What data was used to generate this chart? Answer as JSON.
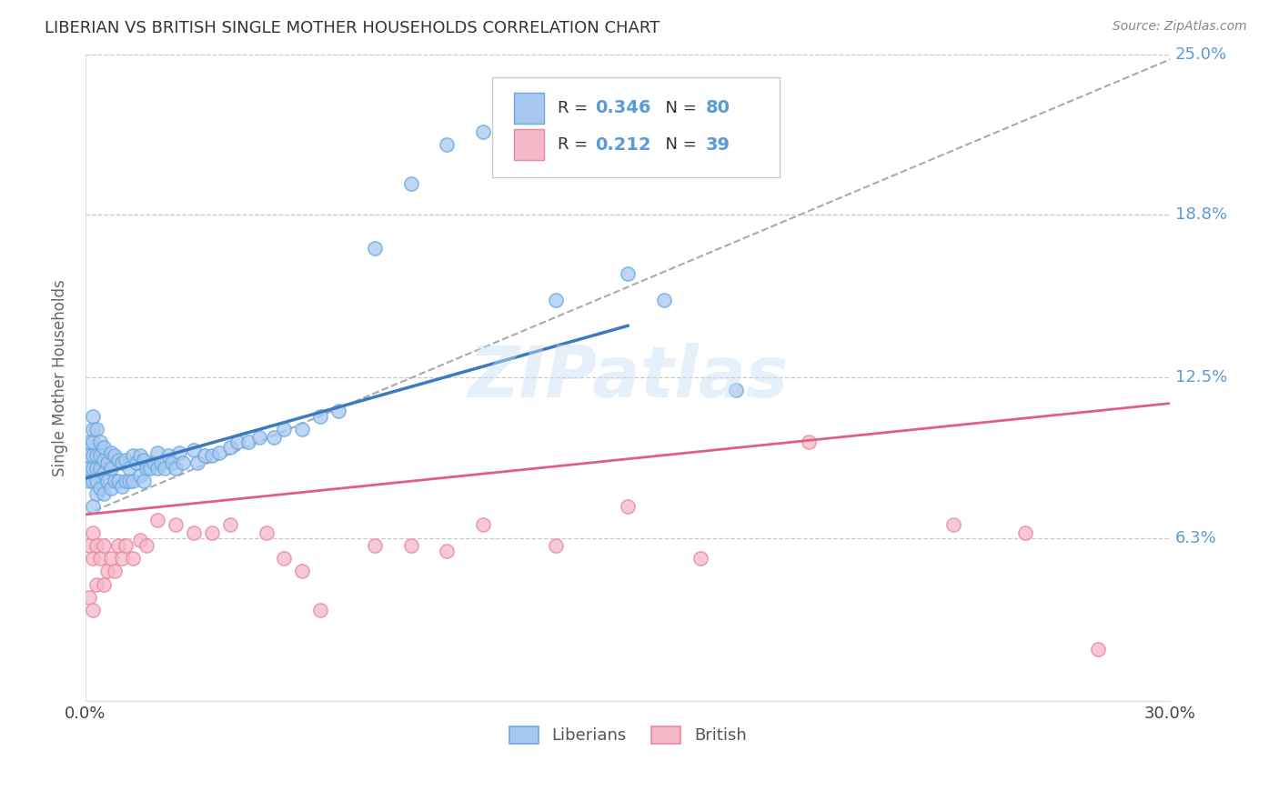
{
  "title": "LIBERIAN VS BRITISH SINGLE MOTHER HOUSEHOLDS CORRELATION CHART",
  "source": "Source: ZipAtlas.com",
  "ylabel": "Single Mother Households",
  "xlim": [
    0.0,
    0.3
  ],
  "ylim": [
    0.0,
    0.25
  ],
  "xtick_labels": [
    "0.0%",
    "30.0%"
  ],
  "ytick_labels": [
    "6.3%",
    "12.5%",
    "18.8%",
    "25.0%"
  ],
  "ytick_values": [
    0.063,
    0.125,
    0.188,
    0.25
  ],
  "grid_color": "#c8c8c8",
  "background_color": "#ffffff",
  "liberian_color": "#a8c8f0",
  "liberian_edge": "#6aaae0",
  "british_color": "#f5b8c8",
  "british_edge": "#e888a8",
  "liberian_R": 0.346,
  "liberian_N": 80,
  "british_R": 0.212,
  "british_N": 39,
  "trend_blue_color": "#3a7abf",
  "trend_gray_color": "#aaaaaa",
  "trend_pink_color": "#e06080",
  "watermark": "ZIPatlas",
  "legend_label_liberian": "Liberians",
  "legend_label_british": "British",
  "gray_line_x0": 0.0,
  "gray_line_y0": 0.072,
  "gray_line_x1": 0.3,
  "gray_line_y1": 0.248,
  "blue_line_x0": 0.0,
  "blue_line_y0": 0.086,
  "blue_line_x1": 0.15,
  "blue_line_y1": 0.145,
  "pink_line_x0": 0.0,
  "pink_line_y0": 0.072,
  "pink_line_x1": 0.3,
  "pink_line_y1": 0.115,
  "lib_x": [
    0.001,
    0.001,
    0.001,
    0.001,
    0.002,
    0.002,
    0.002,
    0.002,
    0.002,
    0.002,
    0.002,
    0.003,
    0.003,
    0.003,
    0.003,
    0.003,
    0.004,
    0.004,
    0.004,
    0.004,
    0.005,
    0.005,
    0.005,
    0.005,
    0.006,
    0.006,
    0.007,
    0.007,
    0.007,
    0.008,
    0.008,
    0.009,
    0.009,
    0.01,
    0.01,
    0.011,
    0.011,
    0.012,
    0.012,
    0.013,
    0.013,
    0.014,
    0.015,
    0.015,
    0.016,
    0.016,
    0.017,
    0.018,
    0.019,
    0.02,
    0.02,
    0.021,
    0.022,
    0.023,
    0.024,
    0.025,
    0.026,
    0.027,
    0.03,
    0.031,
    0.033,
    0.035,
    0.037,
    0.04,
    0.042,
    0.045,
    0.048,
    0.052,
    0.055,
    0.06,
    0.065,
    0.07,
    0.08,
    0.09,
    0.1,
    0.11,
    0.13,
    0.15,
    0.16,
    0.18
  ],
  "lib_y": [
    0.085,
    0.09,
    0.095,
    0.1,
    0.075,
    0.085,
    0.09,
    0.095,
    0.1,
    0.105,
    0.11,
    0.08,
    0.085,
    0.09,
    0.095,
    0.105,
    0.082,
    0.09,
    0.095,
    0.1,
    0.08,
    0.088,
    0.093,
    0.098,
    0.085,
    0.092,
    0.082,
    0.09,
    0.096,
    0.085,
    0.095,
    0.085,
    0.093,
    0.083,
    0.092,
    0.085,
    0.093,
    0.085,
    0.09,
    0.085,
    0.095,
    0.092,
    0.087,
    0.095,
    0.085,
    0.093,
    0.09,
    0.09,
    0.092,
    0.09,
    0.096,
    0.092,
    0.09,
    0.095,
    0.092,
    0.09,
    0.096,
    0.092,
    0.097,
    0.092,
    0.095,
    0.095,
    0.096,
    0.098,
    0.1,
    0.1,
    0.102,
    0.102,
    0.105,
    0.105,
    0.11,
    0.112,
    0.175,
    0.2,
    0.215,
    0.22,
    0.155,
    0.165,
    0.155,
    0.12
  ],
  "brit_x": [
    0.001,
    0.001,
    0.002,
    0.002,
    0.002,
    0.003,
    0.003,
    0.004,
    0.005,
    0.005,
    0.006,
    0.007,
    0.008,
    0.009,
    0.01,
    0.011,
    0.013,
    0.015,
    0.017,
    0.02,
    0.025,
    0.03,
    0.035,
    0.04,
    0.05,
    0.055,
    0.06,
    0.065,
    0.08,
    0.09,
    0.1,
    0.11,
    0.13,
    0.15,
    0.17,
    0.2,
    0.24,
    0.26,
    0.28
  ],
  "brit_y": [
    0.04,
    0.06,
    0.035,
    0.055,
    0.065,
    0.045,
    0.06,
    0.055,
    0.045,
    0.06,
    0.05,
    0.055,
    0.05,
    0.06,
    0.055,
    0.06,
    0.055,
    0.062,
    0.06,
    0.07,
    0.068,
    0.065,
    0.065,
    0.068,
    0.065,
    0.055,
    0.05,
    0.035,
    0.06,
    0.06,
    0.058,
    0.068,
    0.06,
    0.075,
    0.055,
    0.1,
    0.068,
    0.065,
    0.02
  ]
}
